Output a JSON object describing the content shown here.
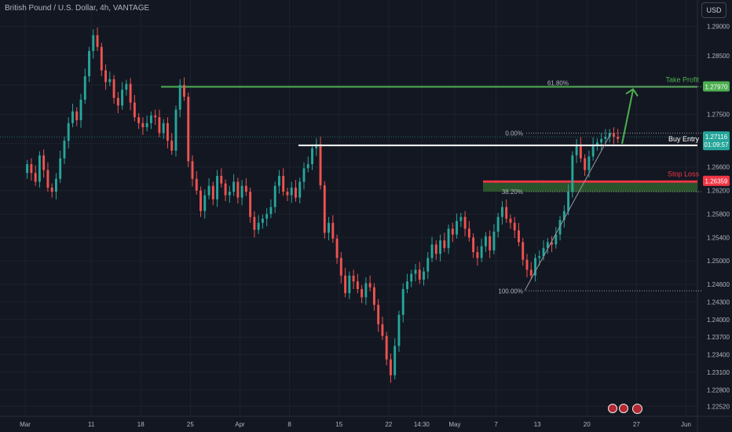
{
  "header": {
    "title": "British Pound / U.S. Dollar, 4h, VANTAGE",
    "currency_button": "USD"
  },
  "chart_data": {
    "type": "candlestick",
    "symbol": "GBPUSD",
    "timeframe": "4h",
    "y_axis": {
      "ylim": [
        1.2235,
        1.2945
      ],
      "ticks": [
        "1.29000",
        "1.28500",
        "1.28000",
        "1.27500",
        "1.27000",
        "1.26600",
        "1.26200",
        "1.25800",
        "1.25400",
        "1.25000",
        "1.24600",
        "1.24300",
        "1.24000",
        "1.23700",
        "1.23400",
        "1.23100",
        "1.22800",
        "1.22520"
      ],
      "tick_values": [
        1.29,
        1.285,
        1.28,
        1.275,
        1.27,
        1.266,
        1.262,
        1.258,
        1.254,
        1.25,
        1.246,
        1.243,
        1.24,
        1.237,
        1.234,
        1.231,
        1.228,
        1.2252
      ]
    },
    "x_axis": {
      "ticks": [
        "Mar",
        "11",
        "18",
        "25",
        "Apr",
        "8",
        "15",
        "22",
        "14:30",
        "May",
        "7",
        "13",
        "20",
        "27",
        "Jun"
      ],
      "tick_bars": [
        0,
        16,
        28,
        40,
        52,
        64,
        76,
        88,
        96,
        104,
        114,
        124,
        136,
        148,
        160
      ],
      "xlim_bars": [
        0,
        162
      ]
    },
    "candles_close": [
      1.2665,
      1.265,
      1.2635,
      1.268,
      1.2655,
      1.2625,
      1.2618,
      1.264,
      1.2675,
      1.2705,
      1.2735,
      1.2755,
      1.274,
      1.2775,
      1.2815,
      1.2858,
      1.2885,
      1.2865,
      1.2825,
      1.2805,
      1.281,
      1.2778,
      1.2765,
      1.2792,
      1.2802,
      1.277,
      1.2745,
      1.2735,
      1.2728,
      1.2735,
      1.2748,
      1.2745,
      1.2718,
      1.2735,
      1.2705,
      1.2688,
      1.2758,
      1.28,
      1.278,
      1.267,
      1.264,
      1.262,
      1.2585,
      1.2612,
      1.2628,
      1.2605,
      1.2645,
      1.2632,
      1.2612,
      1.2618,
      1.2635,
      1.2608,
      1.2628,
      1.2618,
      1.2575,
      1.2553,
      1.2565,
      1.2572,
      1.258,
      1.2592,
      1.2628,
      1.2645,
      1.2618,
      1.2612,
      1.2625,
      1.2608,
      1.2635,
      1.2658,
      1.2665,
      1.2692,
      1.2699,
      1.2629,
      1.2548,
      1.2565,
      1.2538,
      1.2505,
      1.2475,
      1.2445,
      1.2475,
      1.2465,
      1.2452,
      1.2438,
      1.2462,
      1.2455,
      1.2425,
      1.2392,
      1.2372,
      1.2332,
      1.2305,
      1.2355,
      1.2408,
      1.2452,
      1.2465,
      1.2478,
      1.2485,
      1.2468,
      1.2482,
      1.2505,
      1.2528,
      1.2512,
      1.2535,
      1.2522,
      1.2555,
      1.2545,
      1.2568,
      1.2575,
      1.2555,
      1.254,
      1.2515,
      1.2505,
      1.2525,
      1.2542,
      1.2518,
      1.255,
      1.2575,
      1.2592,
      1.2572,
      1.2565,
      1.2552,
      1.2532,
      1.2502,
      1.2485,
      1.2475,
      1.2505,
      1.2508,
      1.2522,
      1.2532,
      1.2528,
      1.2545,
      1.257,
      1.2585,
      1.2618,
      1.268,
      1.2698,
      1.2675,
      1.2655,
      1.2678,
      1.2698,
      1.2702,
      1.2708,
      1.2712,
      1.2718,
      1.2712,
      1.2708
    ],
    "levels": {
      "take_profit": {
        "label": "Take Profit",
        "value": "1.27970",
        "price": 1.2797
      },
      "buy_entry": {
        "label": "Buy Entry",
        "value": "1.27116",
        "price": 1.27116,
        "countdown": "01:09:57",
        "line_price": 1.2697
      },
      "stop_loss": {
        "label": "Stop Loss",
        "value": "1.26359",
        "price": 1.26359
      },
      "fib_61": {
        "label": "61.80%",
        "price": 1.2797
      },
      "fib_0": {
        "label": "0.00%",
        "price": 1.2718
      },
      "fib_38": {
        "label": "38.20%",
        "price": 1.2618
      },
      "fib_100": {
        "label": "100.00%",
        "price": 1.2449
      }
    },
    "colors": {
      "up": "#26a69a",
      "down": "#ef5350",
      "take_profit": "#4caf50",
      "stop_loss": "#f23645",
      "entry": "#ffffff",
      "background": "#131722"
    }
  }
}
